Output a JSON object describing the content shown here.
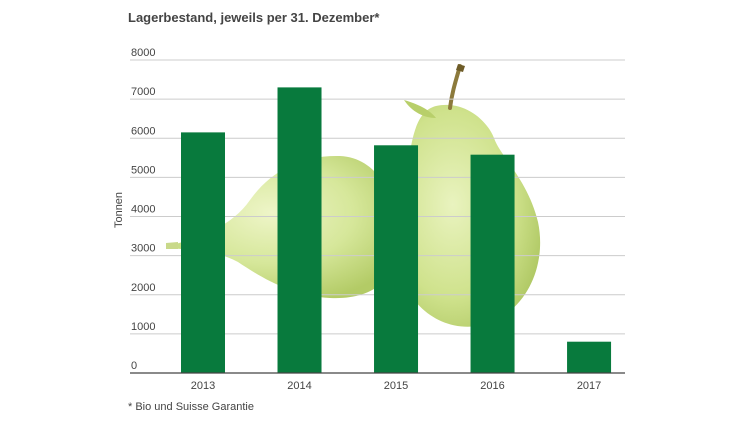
{
  "chart_data": {
    "type": "bar",
    "title": "Lagerbestand, jeweils per 31. Dezember*",
    "footnote": "* Bio und Suisse Garantie",
    "xlabel": "",
    "ylabel": "Tonnen",
    "categories": [
      "2013",
      "2014",
      "2015",
      "2016",
      "2017"
    ],
    "values": [
      6150,
      7300,
      5820,
      5580,
      800
    ],
    "ylim": [
      0,
      8000
    ],
    "yticks": [
      "0",
      "1000",
      "2000",
      "3000",
      "4000",
      "5000",
      "6000",
      "7000",
      "8000"
    ],
    "grid": true,
    "legend": "none",
    "colors": {
      "bar": "#087a3d",
      "grid": "#cccccc",
      "axis": "#444444",
      "pear_light": "#e2eeb4",
      "pear_mid": "#c7dc84",
      "pear_dark": "#a9c35c",
      "stem": "#8c7a3c"
    },
    "background_image": "pear-image"
  }
}
